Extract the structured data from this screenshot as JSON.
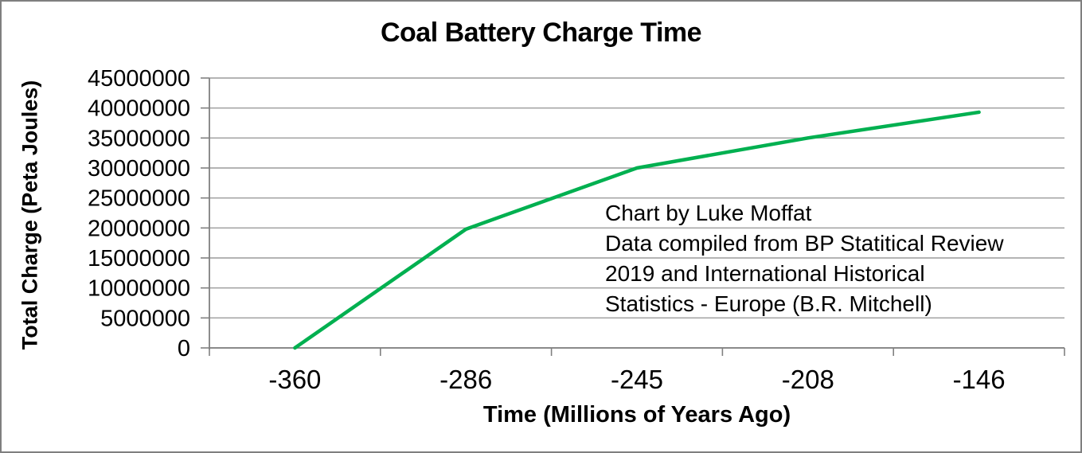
{
  "chart_data": {
    "type": "line",
    "title": "Coal Battery Charge Time",
    "xlabel": "Time (Millions of Years Ago)",
    "ylabel": "Total Charge (Peta Joules)",
    "categories": [
      "-360",
      "-286",
      "-245",
      "-208",
      "-146"
    ],
    "series": [
      {
        "name": "Total Charge",
        "values": [
          0,
          19800000,
          30000000,
          35000000,
          39300000
        ]
      }
    ],
    "ylim": [
      0,
      45000000
    ],
    "ytick_step": 5000000,
    "ytick_labels": [
      "0",
      "5000000",
      "10000000",
      "15000000",
      "20000000",
      "25000000",
      "30000000",
      "35000000",
      "40000000",
      "45000000"
    ],
    "grid": "horizontal",
    "legend": "none",
    "annotation": {
      "lines": [
        "Chart by Luke Moffat",
        "Data compiled from BP Statitical Review",
        "2019 and International Historical",
        "Statistics - Europe (B.R. Mitchell)"
      ]
    },
    "colors": {
      "line": "#00B050",
      "grid": "#9b9b9b",
      "axis": "#808080",
      "text": "#000000",
      "border": "#7f7f7f"
    }
  }
}
